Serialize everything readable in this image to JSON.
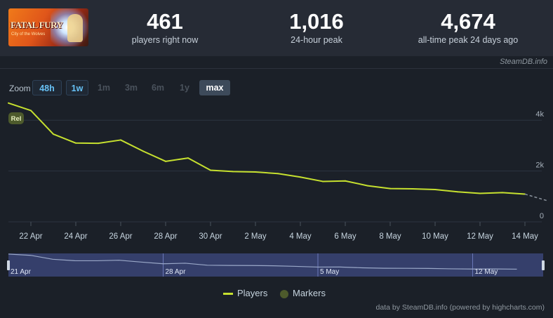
{
  "game": {
    "capsule_title": "FATAL FURY",
    "capsule_subtitle": "City of the Wolves"
  },
  "stats": [
    {
      "value": "461",
      "label": "players right now"
    },
    {
      "value": "1,016",
      "label": "24-hour peak"
    },
    {
      "value": "4,674",
      "label": "all-time peak 24 days ago"
    }
  ],
  "credit": "SteamDB.info",
  "zoom": {
    "label": "Zoom",
    "buttons": [
      "48h",
      "1w",
      "1m",
      "3m",
      "6m",
      "1y",
      "max"
    ],
    "selected": "max"
  },
  "marker_label": "Rel",
  "legend": {
    "players": "Players",
    "markers": "Markers"
  },
  "footer": "data by SteamDB.info (powered by highcharts.com)",
  "colors": {
    "line": "#c6e02f",
    "background": "#1b2028",
    "navigator_fill": "#4a5aa3",
    "marker": "#4d5a2c"
  },
  "chart_data": {
    "type": "line",
    "series": [
      {
        "name": "Players",
        "x": [
          "2025-04-21",
          "2025-04-22",
          "2025-04-23",
          "2025-04-24",
          "2025-04-25",
          "2025-04-26",
          "2025-04-27",
          "2025-04-28",
          "2025-04-29",
          "2025-04-30",
          "2025-05-01",
          "2025-05-02",
          "2025-05-03",
          "2025-05-04",
          "2025-05-05",
          "2025-05-06",
          "2025-05-07",
          "2025-05-08",
          "2025-05-09",
          "2025-05-10",
          "2025-05-11",
          "2025-05-12",
          "2025-05-13",
          "2025-05-14"
        ],
        "values": [
          4674,
          4380,
          3450,
          3100,
          3090,
          3220,
          2780,
          2380,
          2510,
          2030,
          1980,
          1960,
          1900,
          1760,
          1590,
          1610,
          1420,
          1310,
          1300,
          1270,
          1180,
          1120,
          1150,
          1090
        ]
      }
    ],
    "projection": {
      "x": [
        "2025-05-14",
        "2025-05-15"
      ],
      "values": [
        1090,
        830
      ]
    },
    "x_ticks": [
      "22 Apr",
      "24 Apr",
      "26 Apr",
      "28 Apr",
      "30 Apr",
      "2 May",
      "4 May",
      "6 May",
      "8 May",
      "10 May",
      "12 May",
      "14 May"
    ],
    "y_ticks": [
      "0",
      "2k",
      "4k"
    ],
    "ylim": [
      0,
      5000
    ],
    "navigator_labels": [
      "21 Apr",
      "28 Apr",
      "5 May",
      "12 May"
    ],
    "grid": true,
    "legend_position": "bottom-center"
  }
}
